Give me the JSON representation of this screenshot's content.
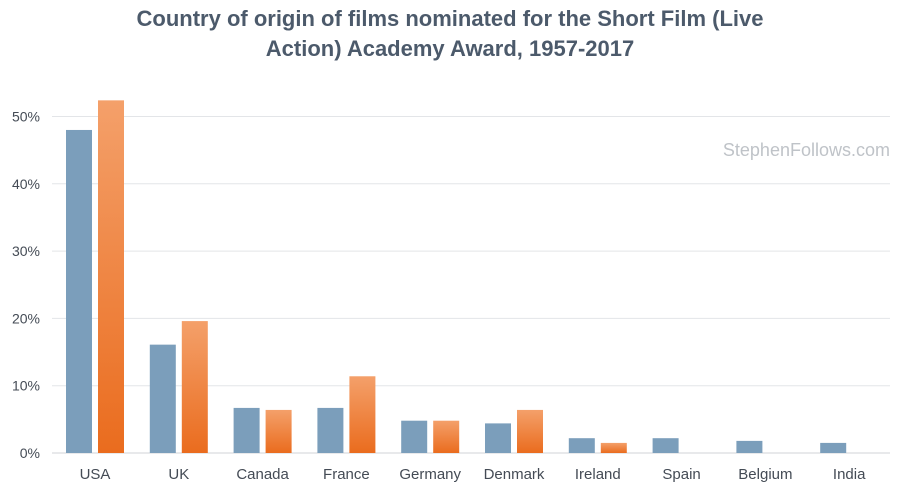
{
  "chart_data": {
    "type": "bar",
    "title": "Country of origin of films nominated for the Short Film (Live Action) Academy Award, 1957-2017",
    "watermark": "StephenFollows.com",
    "categories": [
      "USA",
      "UK",
      "Canada",
      "France",
      "Germany",
      "Denmark",
      "Ireland",
      "Spain",
      "Belgium",
      "India"
    ],
    "series": [
      {
        "color": "#7b9ebb",
        "values": [
          48.0,
          16.1,
          6.7,
          6.7,
          4.8,
          4.4,
          2.2,
          2.2,
          1.8,
          1.5
        ]
      },
      {
        "color": "#f07f35",
        "values": [
          52.4,
          19.6,
          6.4,
          11.4,
          4.8,
          6.4,
          1.5,
          0,
          0,
          0
        ]
      }
    ],
    "y_ticks": [
      "0%",
      "10%",
      "20%",
      "30%",
      "40%",
      "50%"
    ],
    "ylim": [
      0,
      55
    ],
    "grid": true,
    "xlabel": "",
    "ylabel": ""
  }
}
